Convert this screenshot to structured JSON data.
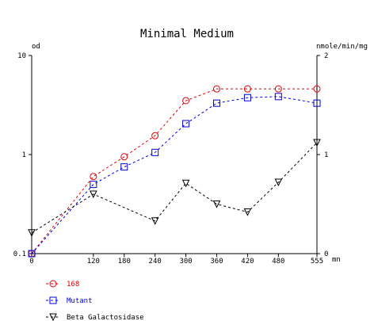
{
  "chart_data": {
    "type": "line",
    "title": "Minimal Medium",
    "x": [
      0,
      120,
      180,
      240,
      300,
      360,
      420,
      480,
      555
    ],
    "x_tick_labels": [
      "0",
      "120",
      "180",
      "240",
      "300",
      "360",
      "420",
      "480",
      "555"
    ],
    "x_unit": "mn",
    "xlim": [
      0,
      555
    ],
    "left_axis": {
      "unit_label": "od",
      "scale": "log",
      "ylim": [
        0.1,
        10
      ],
      "ticks": [
        0.1,
        1,
        10
      ],
      "tick_labels": [
        "0.1",
        "1",
        "10"
      ]
    },
    "right_axis": {
      "unit_label": "nmole/min/mg",
      "scale": "linear",
      "ylim": [
        0,
        2
      ],
      "ticks": [
        0,
        1,
        2
      ],
      "tick_labels": [
        "0",
        "1",
        "2"
      ]
    },
    "grid": false,
    "legend_position": "bottom-left",
    "series": [
      {
        "name": "168",
        "axis": "left",
        "marker": "circle",
        "color": "#e00000",
        "line": "dashed",
        "values": [
          0.1,
          0.6,
          0.95,
          1.55,
          3.5,
          4.6,
          4.6,
          4.6,
          4.6
        ]
      },
      {
        "name": "Mutant",
        "axis": "left",
        "marker": "square",
        "color": "#0000e0",
        "line": "dashed",
        "values": [
          0.1,
          0.5,
          0.75,
          1.05,
          2.05,
          3.3,
          3.75,
          3.85,
          3.3
        ]
      },
      {
        "name": "Beta Galactosidase",
        "axis": "right",
        "marker": "triangle-down",
        "color": "#000000",
        "line": "dashed",
        "values": [
          0.21,
          0.6,
          null,
          0.33,
          0.71,
          0.5,
          0.42,
          0.72,
          1.12
        ]
      }
    ]
  }
}
